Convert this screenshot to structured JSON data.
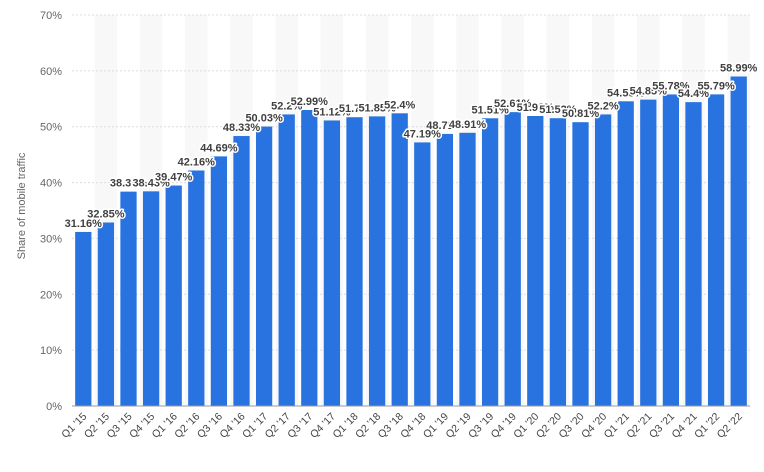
{
  "chart_data": {
    "type": "bar",
    "ylabel": "Share of mobile traffic",
    "ylim": [
      0,
      70
    ],
    "yticks": [
      0,
      10,
      20,
      30,
      40,
      50,
      60,
      70
    ],
    "ytick_labels": [
      "0%",
      "10%",
      "20%",
      "30%",
      "40%",
      "50%",
      "60%",
      "70%"
    ],
    "grid": true,
    "categories": [
      "Q1 '15",
      "Q2 '15",
      "Q3 '15",
      "Q4 '15",
      "Q1 '16",
      "Q2 '16",
      "Q3 '16",
      "Q4 '16",
      "Q1 '17",
      "Q2 '17",
      "Q3 '17",
      "Q4 '17",
      "Q1 '18",
      "Q2 '18",
      "Q3 '18",
      "Q4 '18",
      "Q1 '19",
      "Q2 '19",
      "Q3 '19",
      "Q4 '19",
      "Q1 '20",
      "Q2 '20",
      "Q3 '20",
      "Q4 '20",
      "Q1 '21",
      "Q2 '21",
      "Q3 '21",
      "Q4 '21",
      "Q1 '22",
      "Q2 '22"
    ],
    "values": [
      31.16,
      32.85,
      38.38,
      38.43,
      39.47,
      42.16,
      44.69,
      48.33,
      50.03,
      52.2,
      52.99,
      51.12,
      51.7,
      51.85,
      52.4,
      47.19,
      48.71,
      48.91,
      51.51,
      52.61,
      51.92,
      51.52,
      50.81,
      52.2,
      54.55,
      54.85,
      55.78,
      54.4,
      55.79,
      58.99
    ],
    "data_labels": [
      "31.16%",
      "32.85%",
      "38.38%",
      "38.43%",
      "39.47%",
      "42.16%",
      "44.69%",
      "48.33%",
      "50.03%",
      "52.2%",
      "52.99%",
      "51.12%",
      "51.7%",
      "51.85%",
      "52.4%",
      "47.19%",
      "48.71%",
      "48.91%",
      "51.51%",
      "52.61%",
      "51.92%",
      "51.52%",
      "50.81%",
      "52.2%",
      "54.55%",
      "54.85%",
      "55.78%",
      "54.4%",
      "55.79%",
      "58.99%"
    ],
    "bar_color": "#2873e0",
    "stripe_color": "#f8f8f8"
  }
}
